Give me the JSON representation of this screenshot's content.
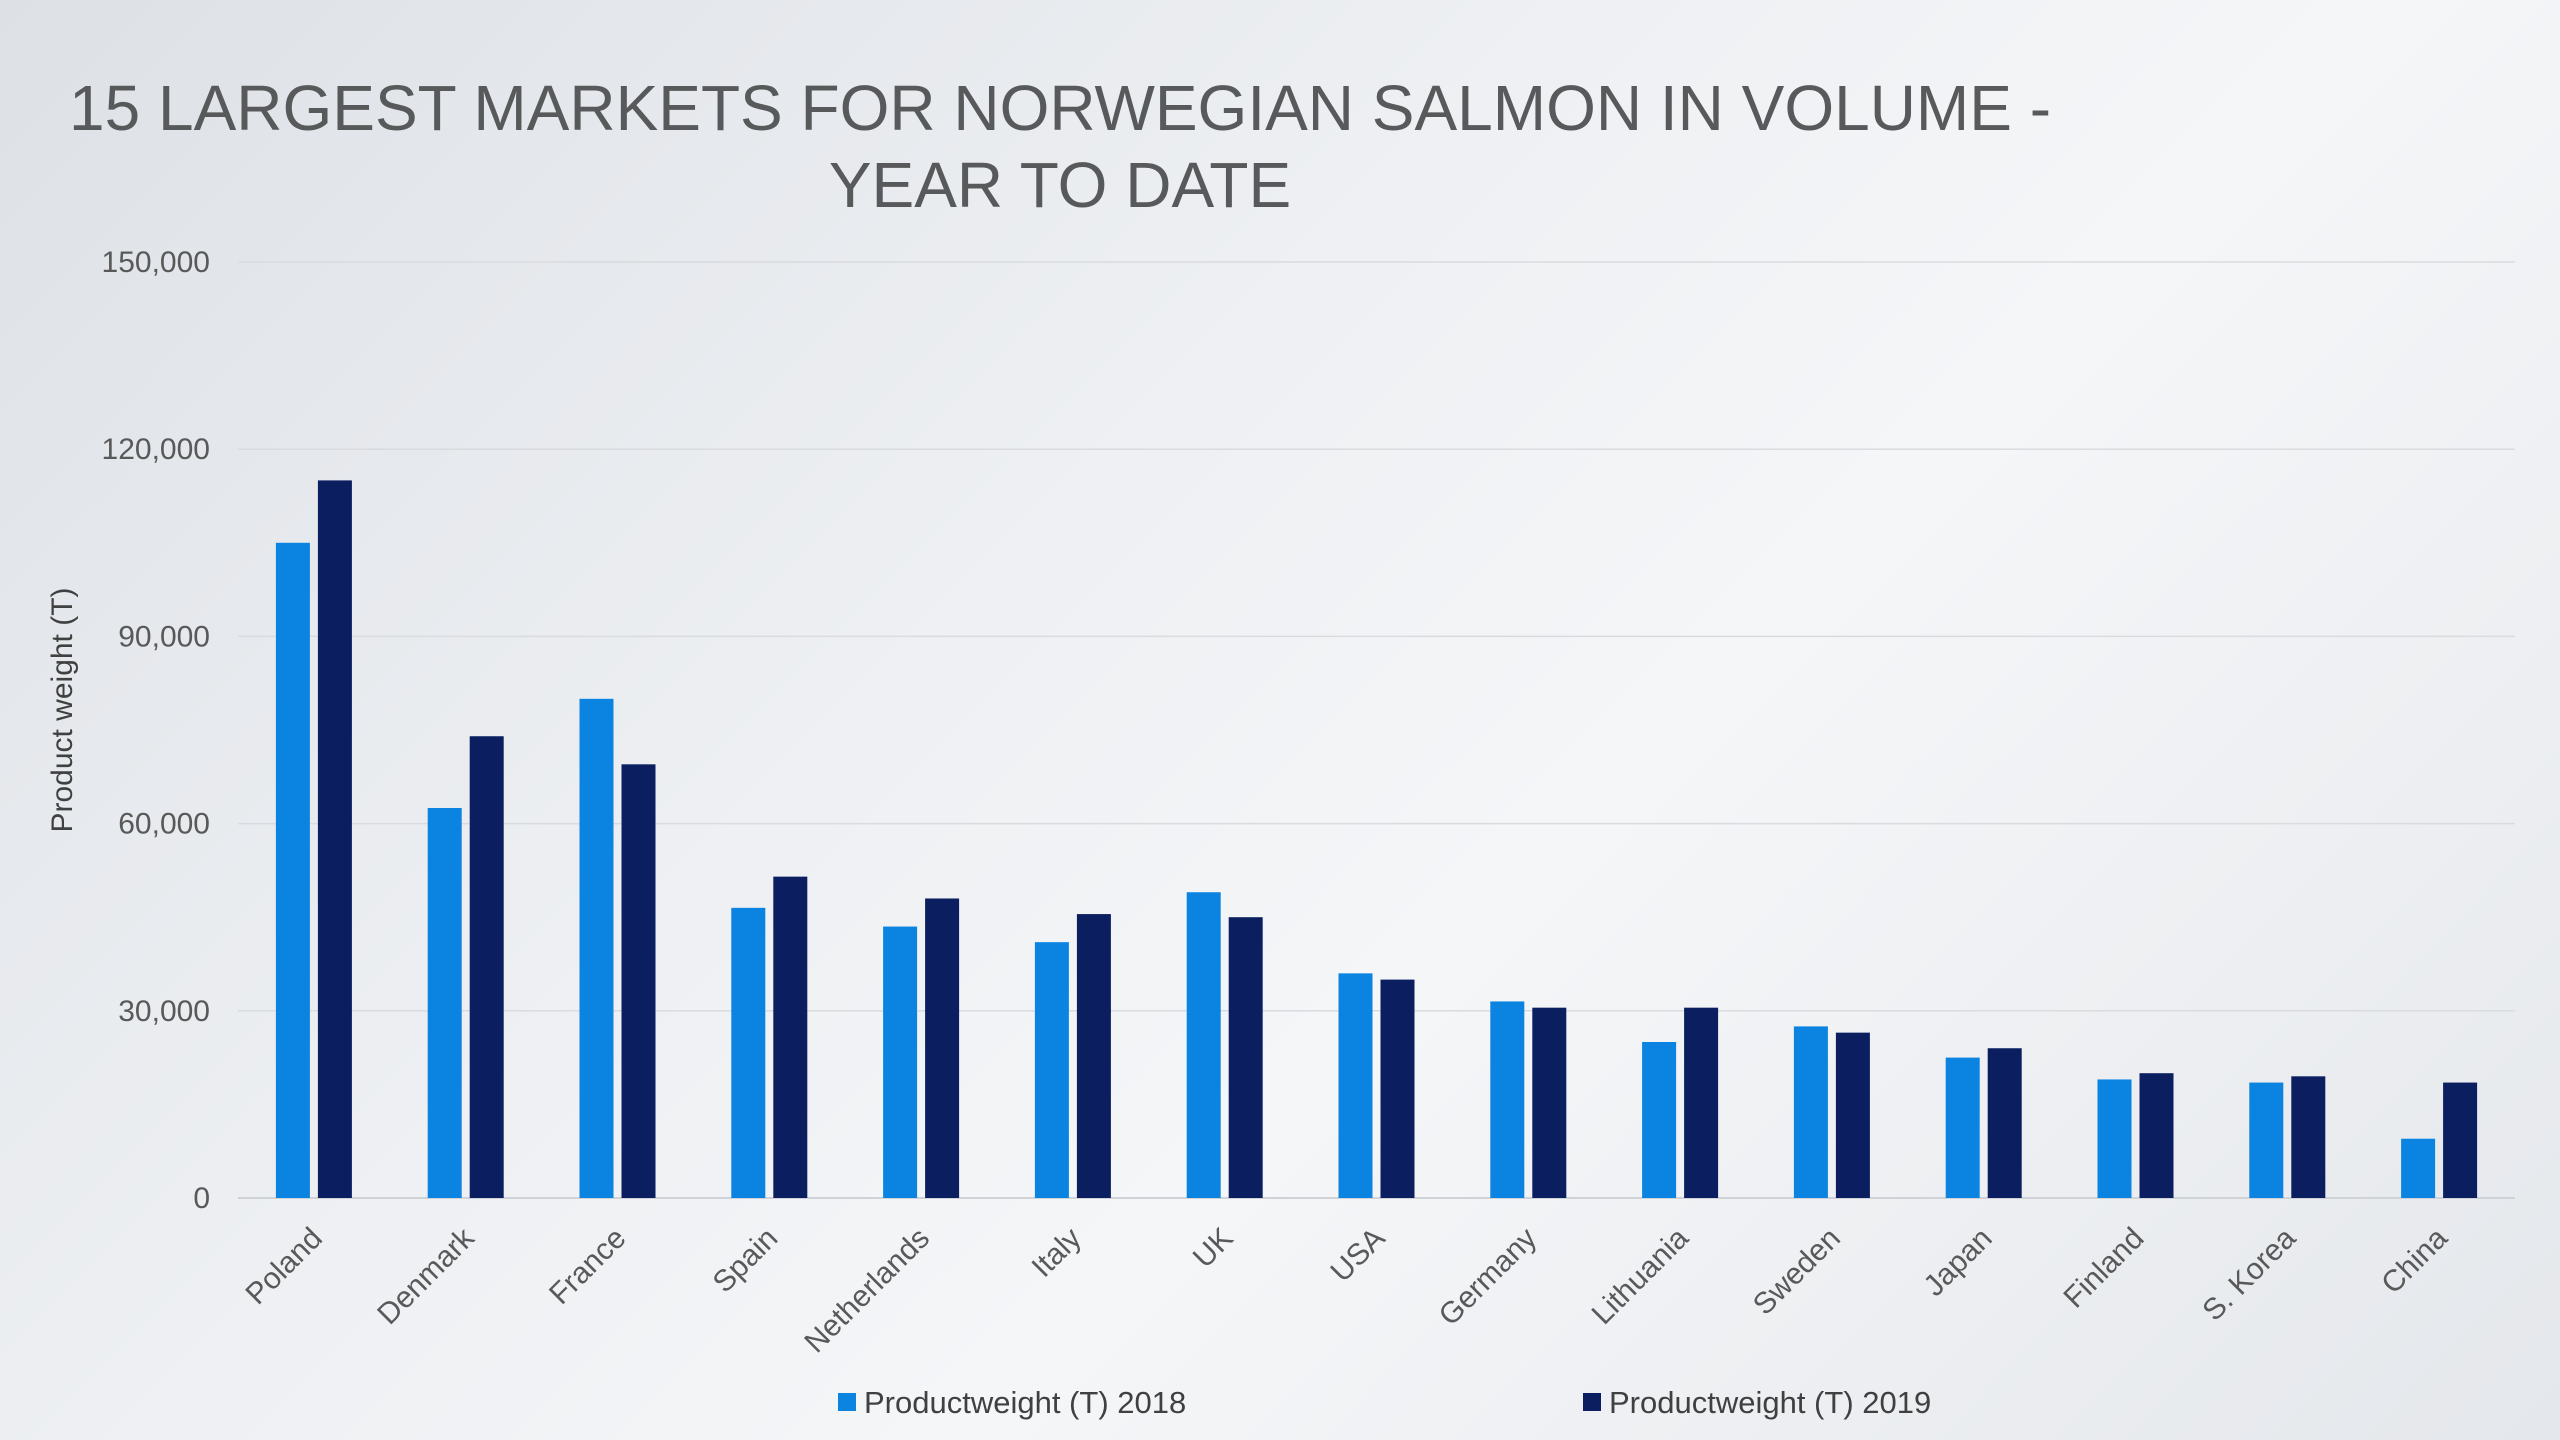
{
  "chart_data": {
    "type": "bar",
    "title": "15 LARGEST MARKETS FOR NORWEGIAN SALMON IN VOLUME - YEAR TO DATE",
    "title_lines": [
      "15 LARGEST MARKETS FOR NORWEGIAN SALMON IN VOLUME -",
      "YEAR TO DATE"
    ],
    "xlabel": "",
    "ylabel": "Product weight (T)",
    "ylim": [
      0,
      150000
    ],
    "yticks": [
      0,
      30000,
      60000,
      90000,
      120000,
      150000
    ],
    "ytick_labels": [
      "0",
      "30,000",
      "60,000",
      "90,000",
      "120,000",
      "150,000"
    ],
    "grid": true,
    "legend_position": "bottom",
    "categories": [
      "Poland",
      "Denmark",
      "France",
      "Spain",
      "Netherlands",
      "Italy",
      "UK",
      "USA",
      "Germany",
      "Lithuania",
      "Sweden",
      "Japan",
      "Finland",
      "S. Korea",
      "China"
    ],
    "series": [
      {
        "name": "Productweight (T) 2018",
        "color": "#0a84e0",
        "values": [
          105000,
          62500,
          80000,
          46500,
          43500,
          41000,
          49000,
          36000,
          31500,
          25000,
          27500,
          22500,
          19000,
          18500,
          9500
        ]
      },
      {
        "name": "Productweight (T) 2019",
        "color": "#0b1f60",
        "values": [
          115000,
          74000,
          69500,
          51500,
          48000,
          45500,
          45000,
          35000,
          30500,
          30500,
          26500,
          24000,
          20000,
          19500,
          18500
        ]
      }
    ]
  }
}
